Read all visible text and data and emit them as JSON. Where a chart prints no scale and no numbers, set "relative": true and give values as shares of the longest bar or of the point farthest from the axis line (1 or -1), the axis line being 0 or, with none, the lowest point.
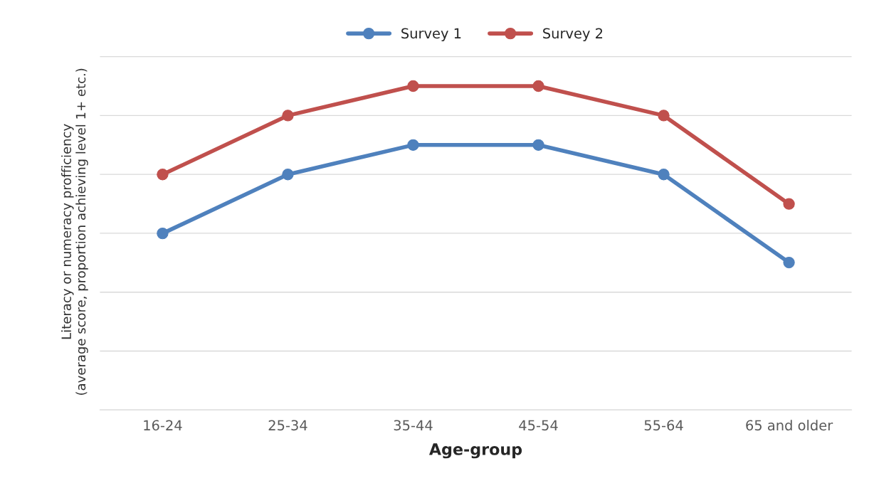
{
  "chart_data": {
    "type": "line",
    "relative": true,
    "xlabel": "Age-group",
    "ylabel": "Literacy or numeracy profficiency\n(average score, proportion achieving level 1+ etc.)",
    "categories": [
      "16-24",
      "25-34",
      "35-44",
      "45-54",
      "55-64",
      "65 and older"
    ],
    "series": [
      {
        "name": "Survey 1",
        "color": "#4f81bd",
        "values": [
          0.545,
          0.727,
          0.818,
          0.818,
          0.727,
          0.455
        ]
      },
      {
        "name": "Survey 2",
        "color": "#c0504d",
        "values": [
          0.727,
          0.909,
          1,
          1,
          0.909,
          0.636
        ]
      }
    ],
    "grid": "y",
    "legend": "top",
    "marker": "circle",
    "line_style": "solid"
  }
}
